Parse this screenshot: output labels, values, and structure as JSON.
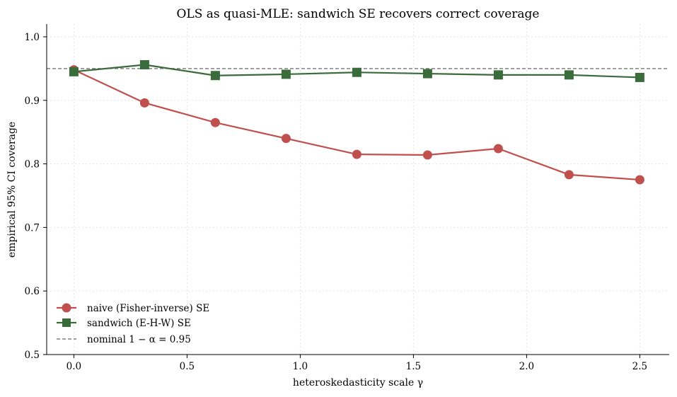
{
  "chart_data": {
    "type": "line",
    "title": "OLS as quasi-MLE: sandwich SE recovers correct coverage",
    "xlabel": "heteroskedasticity scale γ",
    "ylabel": "empirical 95% CI coverage",
    "xlim": [
      -0.12,
      2.63
    ],
    "ylim": [
      0.5,
      1.02
    ],
    "x_ticks": [
      0.0,
      0.5,
      1.0,
      1.5,
      2.0,
      2.5
    ],
    "x_tick_labels": [
      "0.0",
      "0.5",
      "1.0",
      "1.5",
      "2.0",
      "2.5"
    ],
    "y_ticks": [
      0.5,
      0.6,
      0.7,
      0.8,
      0.9,
      1.0
    ],
    "y_tick_labels": [
      "0.5",
      "0.6",
      "0.7",
      "0.8",
      "0.9",
      "1.0"
    ],
    "grid": true,
    "legend_position": "lower-left",
    "x": [
      0.0,
      0.3125,
      0.625,
      0.9375,
      1.25,
      1.5625,
      1.875,
      2.1875,
      2.5
    ],
    "series": [
      {
        "name": "naive (Fisher-inverse) SE",
        "values": [
          0.948,
          0.896,
          0.865,
          0.84,
          0.815,
          0.814,
          0.824,
          0.783,
          0.775
        ],
        "color": "#c0504d",
        "marker": "circle"
      },
      {
        "name": "sandwich (E-H-W) SE",
        "values": [
          0.945,
          0.956,
          0.939,
          0.941,
          0.944,
          0.942,
          0.94,
          0.94,
          0.936
        ],
        "color": "#3a6b3a",
        "marker": "square"
      }
    ],
    "reference_line": {
      "name": "nominal 1 − α = 0.95",
      "value": 0.95,
      "color": "#808080",
      "style": "dashed"
    }
  }
}
